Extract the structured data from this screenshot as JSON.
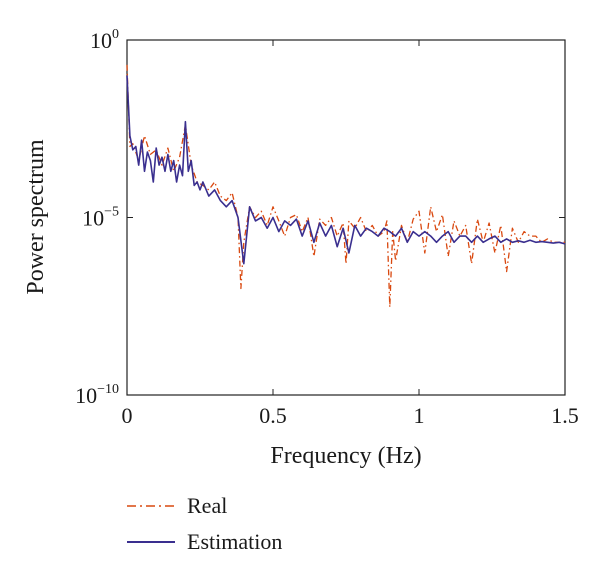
{
  "chart_data": {
    "type": "line",
    "xlabel": "Frequency (Hz)",
    "ylabel": "Power spectrum",
    "y_scale": "log",
    "xlim": [
      0,
      1.5
    ],
    "ylim": [
      1e-10,
      1
    ],
    "x_ticks": [
      {
        "value": 0,
        "label": "0"
      },
      {
        "value": 0.5,
        "label": "0.5"
      },
      {
        "value": 1,
        "label": "1"
      },
      {
        "value": 1.5,
        "label": "1.5"
      }
    ],
    "y_ticks": [
      {
        "value": 1,
        "base": "10",
        "exp": "0"
      },
      {
        "value": 1e-05,
        "base": "10",
        "exp": "−5"
      },
      {
        "value": 1e-10,
        "base": "10",
        "exp": "−10"
      }
    ],
    "grid": false,
    "legend_position": "below",
    "series": [
      {
        "name": "Real",
        "color": "#d9480f",
        "style": "dash-dot",
        "x": [
          0.0,
          0.01,
          0.02,
          0.04,
          0.06,
          0.08,
          0.1,
          0.12,
          0.14,
          0.16,
          0.18,
          0.2,
          0.22,
          0.24,
          0.26,
          0.28,
          0.3,
          0.32,
          0.34,
          0.36,
          0.38,
          0.39,
          0.4,
          0.42,
          0.44,
          0.46,
          0.48,
          0.5,
          0.52,
          0.54,
          0.56,
          0.58,
          0.6,
          0.62,
          0.64,
          0.66,
          0.68,
          0.7,
          0.72,
          0.74,
          0.75,
          0.76,
          0.78,
          0.8,
          0.82,
          0.84,
          0.86,
          0.88,
          0.89,
          0.9,
          0.91,
          0.92,
          0.94,
          0.96,
          0.98,
          1.0,
          1.02,
          1.04,
          1.06,
          1.08,
          1.1,
          1.12,
          1.14,
          1.16,
          1.18,
          1.2,
          1.22,
          1.24,
          1.26,
          1.28,
          1.3,
          1.32,
          1.34,
          1.36,
          1.38,
          1.4,
          1.42,
          1.44,
          1.46,
          1.48,
          1.5
        ],
        "y": [
          0.2,
          0.001,
          0.0012,
          0.0004,
          0.002,
          0.0006,
          0.0008,
          0.0003,
          0.0009,
          0.0002,
          0.0005,
          0.004,
          0.0003,
          0.0001,
          8e-05,
          6e-05,
          0.0001,
          4e-05,
          3e-05,
          5e-05,
          1e-05,
          1e-07,
          2e-06,
          2e-05,
          1e-05,
          1.5e-05,
          6e-06,
          2e-05,
          8e-06,
          3e-06,
          1e-05,
          1.2e-05,
          4e-06,
          1e-05,
          8e-07,
          9e-06,
          6e-06,
          1e-05,
          3e-06,
          7e-06,
          5e-07,
          8e-06,
          5e-06,
          1e-05,
          4e-06,
          6e-06,
          3e-06,
          4e-06,
          8e-06,
          3e-08,
          4e-06,
          6e-07,
          6e-06,
          2e-06,
          9e-06,
          1.5e-05,
          1e-06,
          2e-05,
          4e-06,
          1.2e-05,
          8e-07,
          8e-06,
          3e-06,
          6e-06,
          5e-07,
          9e-06,
          2e-06,
          7e-06,
          1e-06,
          6e-06,
          3e-07,
          5e-06,
          2e-06,
          4e-06,
          3e-06,
          3e-06,
          2e-06,
          2.5e-06,
          2e-06,
          2e-06,
          2e-06
        ]
      },
      {
        "name": "Estimation",
        "color": "#3a2f8f",
        "style": "solid",
        "x": [
          0.0,
          0.01,
          0.02,
          0.03,
          0.04,
          0.05,
          0.06,
          0.07,
          0.08,
          0.09,
          0.1,
          0.11,
          0.12,
          0.13,
          0.14,
          0.15,
          0.16,
          0.17,
          0.18,
          0.19,
          0.2,
          0.21,
          0.22,
          0.23,
          0.24,
          0.25,
          0.26,
          0.28,
          0.3,
          0.32,
          0.34,
          0.36,
          0.38,
          0.4,
          0.42,
          0.44,
          0.46,
          0.48,
          0.5,
          0.52,
          0.54,
          0.56,
          0.58,
          0.6,
          0.62,
          0.64,
          0.66,
          0.68,
          0.7,
          0.72,
          0.74,
          0.76,
          0.78,
          0.8,
          0.82,
          0.84,
          0.86,
          0.88,
          0.9,
          0.92,
          0.94,
          0.96,
          0.98,
          1.0,
          1.02,
          1.04,
          1.06,
          1.08,
          1.1,
          1.12,
          1.14,
          1.16,
          1.18,
          1.2,
          1.22,
          1.24,
          1.26,
          1.28,
          1.3,
          1.32,
          1.34,
          1.36,
          1.38,
          1.4,
          1.42,
          1.44,
          1.46,
          1.48,
          1.5
        ],
        "y": [
          0.1,
          0.002,
          0.0008,
          0.001,
          0.0003,
          0.0015,
          0.0002,
          0.0007,
          0.0004,
          0.0001,
          0.0009,
          0.0003,
          0.0005,
          0.0002,
          0.0006,
          0.0002,
          0.0004,
          0.0001,
          0.0003,
          0.00015,
          0.005,
          0.0002,
          0.0004,
          8e-05,
          0.0001,
          6e-05,
          0.0001,
          4e-05,
          6e-05,
          3e-05,
          2e-05,
          3e-05,
          1e-05,
          5e-07,
          2e-05,
          8e-06,
          1e-05,
          5e-06,
          1e-05,
          4e-06,
          8e-06,
          6e-06,
          9e-06,
          3e-06,
          8e-06,
          2e-06,
          7e-06,
          3e-06,
          6e-06,
          1.5e-06,
          5e-06,
          1e-06,
          6e-06,
          3e-06,
          5e-06,
          4e-06,
          3e-06,
          5e-06,
          4e-06,
          3e-06,
          5e-06,
          2e-06,
          4e-06,
          3e-06,
          4e-06,
          3e-06,
          2e-06,
          3e-06,
          4e-06,
          2e-06,
          3e-06,
          3e-06,
          2e-06,
          3e-06,
          2e-06,
          2.5e-06,
          3e-06,
          2e-06,
          2.5e-06,
          2e-06,
          2.2e-06,
          2e-06,
          2.3e-06,
          2e-06,
          2.1e-06,
          2e-06,
          1.9e-06,
          2e-06,
          1.8e-06
        ]
      }
    ]
  }
}
